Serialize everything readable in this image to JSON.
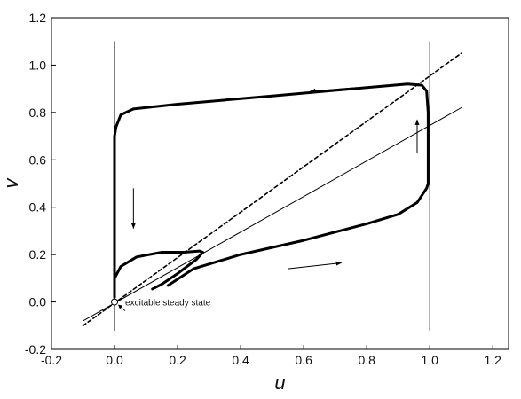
{
  "chart_data": {
    "type": "line",
    "xlabel": "u",
    "ylabel": "v",
    "xlim": [
      -0.2,
      1.25
    ],
    "ylim": [
      -0.2,
      1.2
    ],
    "x_ticks": [
      "-0.2",
      "0.0",
      "0.2",
      "0.4",
      "0.6",
      "0.8",
      "1.0",
      "1.2"
    ],
    "y_ticks": [
      "-0.2",
      "0.0",
      "0.2",
      "0.4",
      "0.6",
      "0.8",
      "1.0",
      "1.2"
    ],
    "x_tick_values": [
      -0.2,
      0.0,
      0.2,
      0.4,
      0.6,
      0.8,
      1.0,
      1.2
    ],
    "y_tick_values": [
      -0.2,
      0.0,
      0.2,
      0.4,
      0.6,
      0.8,
      1.0,
      1.2
    ],
    "grid": false,
    "annotation": {
      "text": "excitable steady state",
      "point": [
        0.0,
        0.0
      ]
    },
    "series": [
      {
        "style": "thin-solid",
        "points": [
          [
            0.0,
            -0.12
          ],
          [
            0.0,
            1.1
          ]
        ]
      },
      {
        "style": "thin-solid",
        "points": [
          [
            1.0,
            -0.12
          ],
          [
            1.0,
            1.1
          ]
        ]
      },
      {
        "style": "thin-solid",
        "points": [
          [
            -0.1,
            -0.08
          ],
          [
            1.1,
            0.82
          ]
        ]
      },
      {
        "style": "dashed",
        "points": [
          [
            -0.1,
            -0.1
          ],
          [
            1.1,
            1.05
          ]
        ]
      },
      {
        "style": "thick-solid",
        "points": [
          [
            0.0,
            0.02
          ],
          [
            0.0,
            0.3
          ],
          [
            0.0,
            0.6
          ],
          [
            0.0,
            0.7
          ],
          [
            0.005,
            0.74
          ],
          [
            0.02,
            0.79
          ],
          [
            0.06,
            0.815
          ],
          [
            0.2,
            0.835
          ],
          [
            0.5,
            0.87
          ],
          [
            0.8,
            0.905
          ],
          [
            0.93,
            0.92
          ],
          [
            0.975,
            0.915
          ],
          [
            0.99,
            0.89
          ],
          [
            0.995,
            0.8
          ],
          [
            0.995,
            0.6
          ],
          [
            0.995,
            0.5
          ],
          [
            0.99,
            0.48
          ],
          [
            0.96,
            0.42
          ],
          [
            0.9,
            0.37
          ],
          [
            0.8,
            0.33
          ],
          [
            0.6,
            0.26
          ],
          [
            0.4,
            0.2
          ],
          [
            0.25,
            0.14
          ],
          [
            0.17,
            0.07
          ]
        ]
      },
      {
        "style": "thick-solid",
        "points": [
          [
            0.0,
            0.06
          ],
          [
            0.0,
            0.1
          ],
          [
            0.02,
            0.15
          ],
          [
            0.07,
            0.19
          ],
          [
            0.15,
            0.21
          ],
          [
            0.22,
            0.21
          ],
          [
            0.27,
            0.215
          ],
          [
            0.28,
            0.21
          ],
          [
            0.26,
            0.18
          ],
          [
            0.2,
            0.12
          ],
          [
            0.15,
            0.075
          ],
          [
            0.12,
            0.055
          ]
        ]
      }
    ],
    "arrows": [
      {
        "from": [
          0.77,
          0.905
        ],
        "to": [
          0.62,
          0.89
        ]
      },
      {
        "from": [
          0.06,
          0.48
        ],
        "to": [
          0.06,
          0.31
        ]
      },
      {
        "from": [
          0.96,
          0.63
        ],
        "to": [
          0.96,
          0.77
        ]
      },
      {
        "from": [
          0.55,
          0.14
        ],
        "to": [
          0.72,
          0.165
        ]
      }
    ]
  }
}
